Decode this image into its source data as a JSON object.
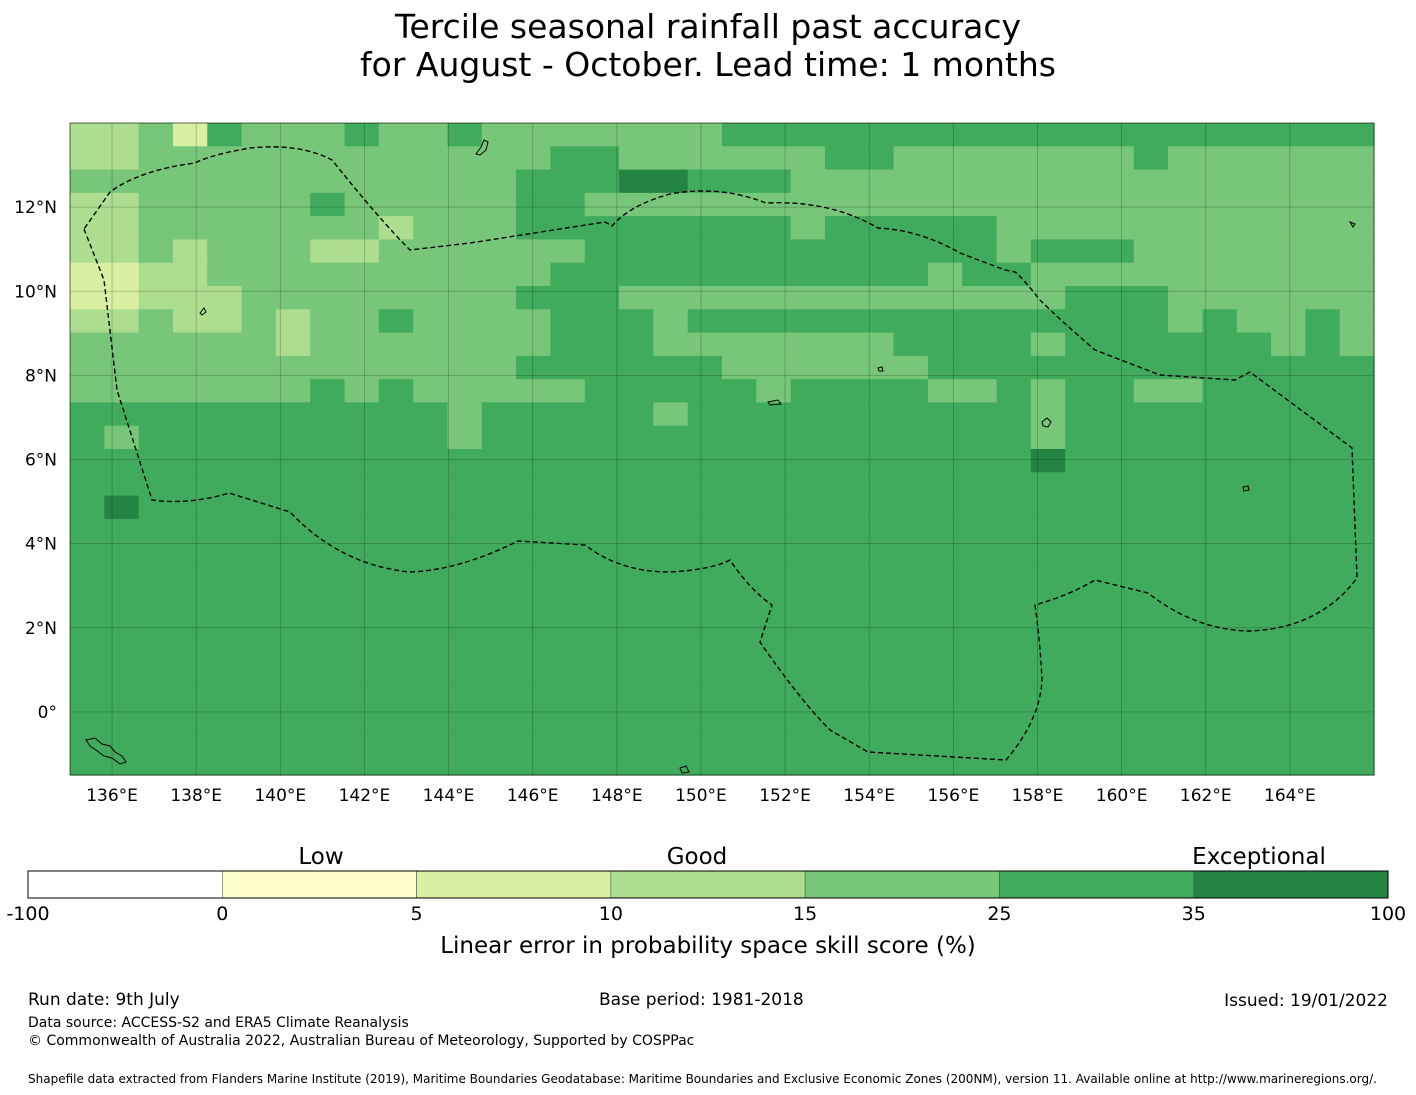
{
  "title": {
    "line1": "Tercile seasonal rainfall past accuracy",
    "line2": "for August - October. Lead time: 1 months"
  },
  "map": {
    "x_ticks": [
      "136°E",
      "138°E",
      "140°E",
      "142°E",
      "144°E",
      "146°E",
      "148°E",
      "150°E",
      "152°E",
      "154°E",
      "156°E",
      "158°E",
      "160°E",
      "162°E",
      "164°E"
    ],
    "y_ticks": [
      "12°N",
      "10°N",
      "8°N",
      "6°N",
      "4°N",
      "2°N",
      "0°"
    ],
    "lon_range": [
      135,
      166
    ],
    "lat_range": [
      -1.5,
      14
    ],
    "grid": true,
    "boundary_style": "dashed"
  },
  "chart_data": {
    "type": "heatmap",
    "title": "Tercile seasonal rainfall past accuracy for August - October. Lead time: 1 months",
    "xlabel": "",
    "ylabel": "",
    "xlim": [
      135,
      166
    ],
    "ylim": [
      -1.5,
      14
    ],
    "cell_size_degrees": [
      0.833,
      0.556
    ],
    "x_columns_start_lon": 135,
    "y_rows_top_lat": 14,
    "legend_placement": "bottom",
    "bins": [
      {
        "range": [
          -100,
          0
        ],
        "color": "#ffffff"
      },
      {
        "range": [
          0,
          5
        ],
        "color": "#ffffcc"
      },
      {
        "range": [
          5,
          10
        ],
        "color": "#d9f0a3"
      },
      {
        "range": [
          10,
          15
        ],
        "color": "#addd8e"
      },
      {
        "range": [
          15,
          25
        ],
        "color": "#78c679"
      },
      {
        "range": [
          25,
          35
        ],
        "color": "#41ab5d"
      },
      {
        "range": [
          35,
          100
        ],
        "color": "#238443"
      }
    ],
    "rows_top_to_bottom": [
      "33425444544544444445555555555555555555",
      "33444444444444554444445544444445444444",
      "44444444444445556655544444444444444444",
      "33444445444445544444444444444444444444",
      "33444444434445555555545555544444444444",
      "33434443344444455555555555545554444444",
      "22334444444444555555555554554444444444",
      "22333444444445554444444444444555444444",
      "33433434454444555455555555555555454454",
      "44444434444444555444444455554555555454",
      "44444444444445555554444445555555555555",
      "44444445454444455555455554454554455555",
      "55555555555455555455555555554555555555",
      "54555555555455555555555555554555555555",
      "55555555555555555555555555556555555555",
      "55555555555555555555555555555555555555",
      "56555555555555555555555555555555555555",
      "55555555555555555555555555555555555555",
      "55555555555555555555555555555555555555",
      "55555555555555555555555555555555555555",
      "55555555555555555555555555555555555555",
      "55555555555555555555555555555555555555",
      "55555555555555555555555555555555555555",
      "55555555555555555555555555555555555555",
      "55555555555555555555555555555555555555",
      "55555555555555555555555555555555555555",
      "55555555555555555555555555555555555555",
      "55555555555555555555555555555555555555"
    ]
  },
  "colorbar": {
    "category_labels": [
      "Low",
      "Good",
      "Exceptional"
    ],
    "ticks": [
      "-100",
      "0",
      "5",
      "10",
      "15",
      "25",
      "35",
      "100"
    ],
    "colors": [
      "#ffffff",
      "#ffffcc",
      "#d9f0a3",
      "#addd8e",
      "#78c679",
      "#41ab5d",
      "#238443"
    ],
    "label": "Linear error in probability space skill score (%)"
  },
  "footer": {
    "run_date": "Run date: 9th July",
    "base_period": "Base period: 1981-2018",
    "issued": "Issued: 19/01/2022",
    "data_source": "Data source: ACCESS-S2 and ERA5 Climate Reanalysis",
    "copyright": "© Commonwealth of Australia 2022, Australian Bureau of Meteorology, Supported by COSPPac",
    "shapefile": "Shapefile data extracted from Flanders Marine Institute (2019), Maritime Boundaries Geodatabase: Maritime Boundaries and Exclusive Economic Zones (200NM), version 11. Available online at http://www.marineregions.org/."
  }
}
